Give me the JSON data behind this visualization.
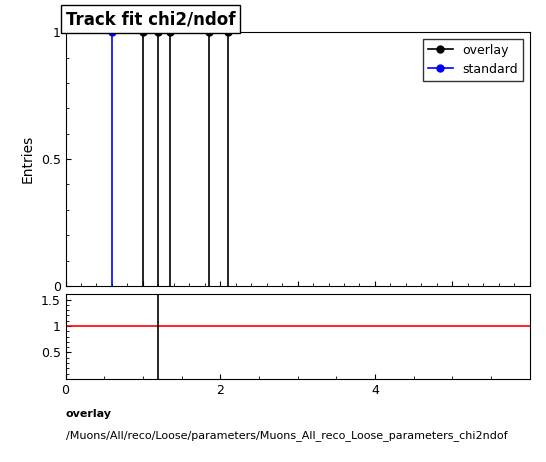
{
  "title": "Track fit chi2/ndof",
  "ylabel_main": "Entries",
  "xlabel": "",
  "xlim": [
    0,
    6
  ],
  "ylim_main": [
    0,
    1.0
  ],
  "ylim_ratio": [
    0,
    1.6
  ],
  "overlay_x": [
    1.0,
    1.2,
    1.35,
    1.85,
    2.1
  ],
  "overlay_y": [
    1.0,
    1.0,
    1.0,
    1.0,
    1.0
  ],
  "standard_x": [
    0.6
  ],
  "standard_y": [
    1.0
  ],
  "overlay_color": "#000000",
  "standard_color": "#0000ff",
  "ratio_line_color": "#ff0000",
  "ratio_vline_x": 1.2,
  "ratio_xlim": [
    0,
    6
  ],
  "ratio_ylim": [
    0,
    1.6
  ],
  "ratio_yticks": [
    0.5,
    1.0,
    1.5
  ],
  "ratio_xticks": [
    0,
    2,
    4
  ],
  "footer_line1": "overlay",
  "footer_line2": "/Muons/All/reco/Loose/parameters/Muons_All_reco_Loose_parameters_chi2ndof",
  "legend_overlay": "overlay",
  "legend_standard": "standard",
  "title_fontsize": 12,
  "label_fontsize": 10,
  "tick_fontsize": 9,
  "footer_fontsize": 8
}
